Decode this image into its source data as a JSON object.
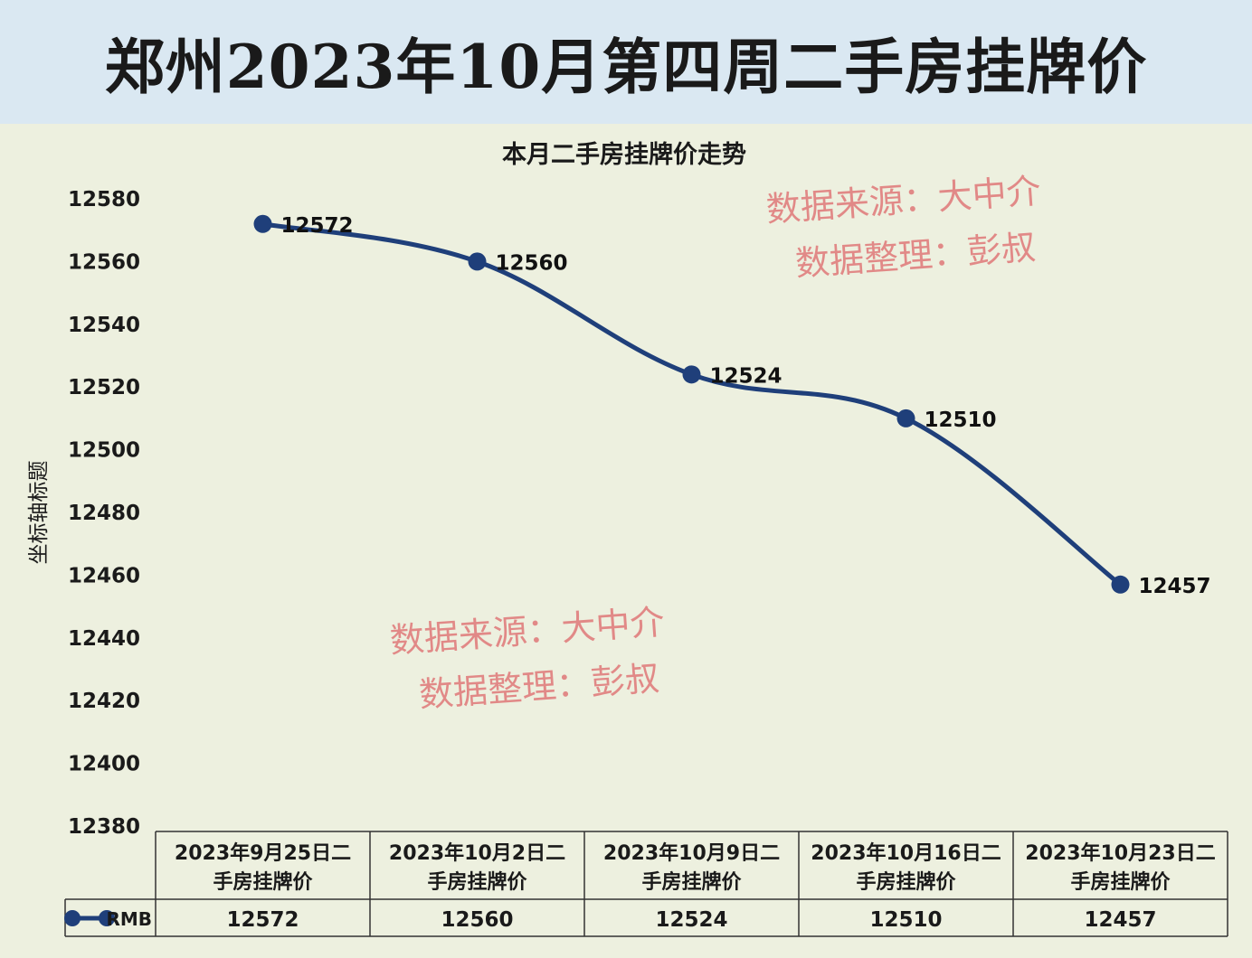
{
  "banner": {
    "title": "郑州2023年10月第四周二手房挂牌价"
  },
  "watermark": {
    "line1": "数据来源：大中介",
    "line2": "数据整理：彭叔"
  },
  "colors": {
    "banner_bg": "#dae8f2",
    "plot_bg": "#edf0df",
    "series": "#1f3f7a",
    "watermark": "#e07878"
  },
  "chart_data": {
    "type": "line",
    "title": "本月二手房挂牌价走势",
    "ylabel": "坐标轴标题",
    "xlabel": "",
    "ylim": [
      12380,
      12580
    ],
    "yticks": [
      12580,
      12560,
      12540,
      12520,
      12500,
      12480,
      12460,
      12440,
      12420,
      12400,
      12380
    ],
    "categories": [
      [
        "2023年9月25日二",
        "手房挂牌价"
      ],
      [
        "2023年10月2日二",
        "手房挂牌价"
      ],
      [
        "2023年10月9日二",
        "手房挂牌价"
      ],
      [
        "2023年10月16日二",
        "手房挂牌价"
      ],
      [
        "2023年10月23日二",
        "手房挂牌价"
      ]
    ],
    "series": [
      {
        "name": "RMB",
        "values": [
          12572,
          12560,
          12524,
          12510,
          12457
        ]
      }
    ],
    "data_labels": true,
    "legend": "data-table",
    "grid": false
  }
}
